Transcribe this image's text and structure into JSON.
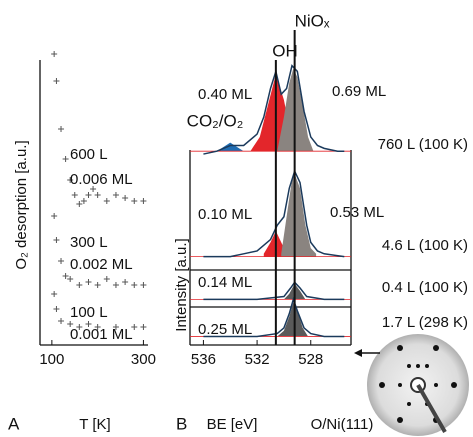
{
  "chart_data": [
    {
      "type": "scatter",
      "panel": "A",
      "xlabel": "T [K]",
      "ylabel": "O₂ desorption [a.u.]",
      "xlim": [
        85,
        310
      ],
      "xticks": [
        100,
        300
      ],
      "ylim": [
        0,
        100
      ],
      "marker_color": "#555555",
      "series": [
        {
          "name": "600 L",
          "coverage": "0.006 ML",
          "x": [
            105,
            110,
            120,
            130,
            140,
            150,
            160,
            170,
            180,
            190,
            200,
            220,
            240,
            260,
            280,
            300
          ],
          "values": [
            97,
            88,
            72,
            62,
            55,
            50,
            47,
            48,
            50,
            52,
            50,
            48,
            50,
            49,
            48,
            48
          ]
        },
        {
          "name": "300 L",
          "coverage": "0.002 ML",
          "x": [
            105,
            110,
            120,
            130,
            140,
            160,
            180,
            200,
            220,
            240,
            260,
            280,
            300
          ],
          "values": [
            43,
            35,
            28,
            23,
            22,
            20,
            21,
            20,
            22,
            20,
            21,
            20,
            20
          ]
        },
        {
          "name": "100 L",
          "coverage": "0.001 ML",
          "x": [
            105,
            110,
            120,
            140,
            160,
            180,
            200,
            240,
            280,
            300
          ],
          "values": [
            17,
            12,
            8,
            7,
            6,
            7,
            6,
            6,
            6,
            6
          ]
        }
      ]
    },
    {
      "type": "line",
      "panel": "B",
      "xlabel": "BE [eV]",
      "ylabel": "Intensity [a.u.]",
      "sample": "O/Ni(111)",
      "xlim": [
        537,
        525
      ],
      "xticks": [
        536,
        532,
        528
      ],
      "ylim": [
        0,
        100
      ],
      "line_color": "#1b3a5c",
      "baseline_color": "#e3262b",
      "peak_labels": [
        {
          "text": "CO₂/O₂",
          "color": "#1f6db3"
        },
        {
          "text": "OH",
          "color": "#e3262b"
        },
        {
          "text": "NiOₓ",
          "color": "#8a8480"
        }
      ],
      "markers": [
        {
          "x": 530.6
        },
        {
          "x": 529.2
        }
      ],
      "series": [
        {
          "name": "760 L (100 K)",
          "baseline": 68,
          "x": [
            536,
            535,
            534,
            533,
            532,
            531.5,
            531,
            530.6,
            530.2,
            529.8,
            529.4,
            529,
            528.5,
            528,
            527.5,
            527,
            526,
            525.5
          ],
          "values": [
            67,
            68,
            70,
            70,
            74,
            80,
            90,
            96,
            88,
            90,
            98,
            96,
            82,
            73,
            70,
            69,
            68,
            68
          ],
          "components": [
            {
              "color": "#1f6db3",
              "x": [
                535,
                534,
                533
              ],
              "values": [
                68,
                71,
                68
              ]
            },
            {
              "color": "#e3262b",
              "label": "0.40 ML",
              "x": [
                532.5,
                531.8,
                531.2,
                530.6,
                530,
                529.5,
                529
              ],
              "values": [
                68,
                73,
                84,
                95,
                86,
                74,
                68
              ]
            },
            {
              "color": "#8a8480",
              "label": "0.69 ML",
              "x": [
                530.5,
                530,
                529.6,
                529.3,
                529,
                528.6,
                528.2,
                527.8
              ],
              "values": [
                68,
                80,
                92,
                97,
                94,
                84,
                73,
                68
              ]
            }
          ]
        },
        {
          "name": "4.6 L (100 K)",
          "baseline": 31,
          "x": [
            536,
            534,
            533,
            532,
            531,
            530.5,
            530,
            529.6,
            529.2,
            528.8,
            528.3,
            528,
            527.5,
            527,
            525.5
          ],
          "values": [
            31,
            31,
            32,
            33,
            37,
            42,
            45,
            55,
            61,
            57,
            42,
            36,
            33,
            32,
            31
          ],
          "components": [
            {
              "color": "#e3262b",
              "label": "0.10 ML",
              "x": [
                531.5,
                531,
                530.6,
                530.2,
                529.8
              ],
              "values": [
                32,
                36,
                40,
                36,
                32
              ]
            },
            {
              "color": "#8a8480",
              "label": "0.53 ML",
              "x": [
                530.2,
                529.8,
                529.4,
                529.2,
                528.8,
                528.4,
                528,
                527.6
              ],
              "values": [
                32,
                45,
                58,
                60,
                55,
                42,
                34,
                32
              ]
            }
          ]
        },
        {
          "name": "0.4 L (100 K)",
          "baseline": 16,
          "x": [
            536,
            532,
            530,
            529.5,
            529.2,
            528.8,
            528.3,
            527,
            525.5
          ],
          "values": [
            16,
            16,
            17,
            20,
            22,
            20,
            17,
            16,
            16
          ],
          "components": [
            {
              "color": "#5a5a5a",
              "label": "0.14 ML",
              "x": [
                530,
                529.6,
                529.2,
                528.8,
                528.4
              ],
              "values": [
                16,
                18,
                21.5,
                19,
                16
              ]
            }
          ]
        },
        {
          "name": "1.7 L (298 K)",
          "baseline": 3,
          "x": [
            536,
            532,
            530.5,
            530,
            529.6,
            529.3,
            529,
            528.5,
            528,
            527,
            525.5
          ],
          "values": [
            3,
            3,
            4,
            6,
            11,
            16,
            12,
            6,
            4,
            3,
            3
          ],
          "components": [
            {
              "color": "#5a5a5a",
              "label": "0.25 ML",
              "x": [
                530.5,
                530,
                529.6,
                529.3,
                529,
                528.6,
                528.2
              ],
              "values": [
                3,
                5,
                10,
                15,
                12,
                6,
                3
              ]
            }
          ]
        }
      ]
    }
  ]
}
